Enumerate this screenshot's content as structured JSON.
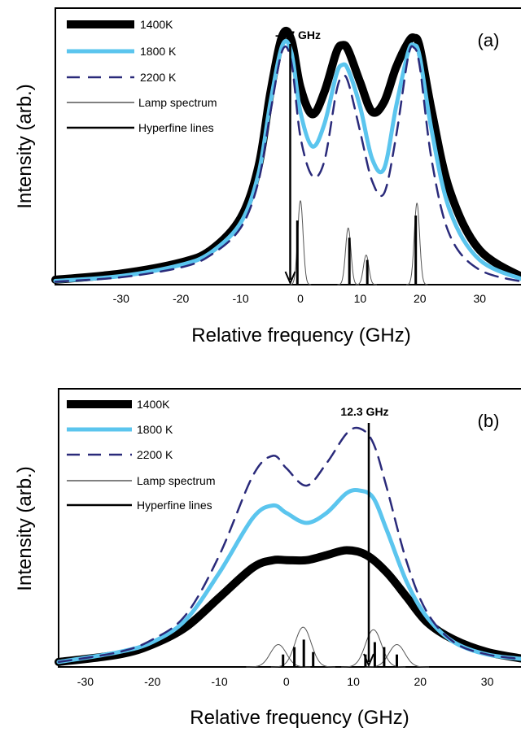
{
  "chart_data": [
    {
      "type": "line",
      "panel_label": "(a)",
      "xlabel": "Relative frequency (GHz)",
      "ylabel": "Intensity (arb.)",
      "xlim": [
        -41,
        38
      ],
      "ylim": [
        0,
        1.12
      ],
      "xticks": [
        -30,
        -20,
        -10,
        0,
        10,
        20,
        30
      ],
      "marker": {
        "x": -1.7,
        "label": "-1.7 GHz"
      },
      "legend_position": "top-left",
      "series": [
        {
          "name": "1400K",
          "style": "thick",
          "color": "#000000",
          "x": [
            -41,
            -30,
            -20,
            -15,
            -10,
            -7,
            -5,
            -3,
            -1.5,
            0,
            2,
            4,
            6,
            7,
            8,
            10,
            12,
            14,
            16,
            18,
            19,
            20,
            22,
            25,
            30,
            38
          ],
          "y": [
            0.02,
            0.045,
            0.09,
            0.14,
            0.27,
            0.48,
            0.78,
            1.01,
            0.99,
            0.8,
            0.69,
            0.78,
            0.94,
            0.97,
            0.95,
            0.82,
            0.7,
            0.74,
            0.88,
            0.98,
            1.0,
            0.96,
            0.7,
            0.38,
            0.14,
            0.02
          ]
        },
        {
          "name": "1800 K",
          "style": "medium",
          "color": "#5bc5ee",
          "x": [
            -41,
            -30,
            -20,
            -15,
            -10,
            -7,
            -5,
            -3,
            -1.5,
            0,
            2,
            4,
            6,
            7,
            8,
            10,
            12,
            14,
            16,
            18,
            19,
            20,
            22,
            25,
            30,
            38
          ],
          "y": [
            0.015,
            0.035,
            0.08,
            0.13,
            0.25,
            0.45,
            0.74,
            0.97,
            0.94,
            0.7,
            0.56,
            0.65,
            0.85,
            0.89,
            0.87,
            0.72,
            0.51,
            0.47,
            0.72,
            0.94,
            0.97,
            0.92,
            0.62,
            0.3,
            0.1,
            0.015
          ]
        },
        {
          "name": "2200 K",
          "style": "dashed",
          "color": "#2a2a7a",
          "x": [
            -41,
            -30,
            -20,
            -15,
            -10,
            -7,
            -5,
            -3,
            -1.5,
            0,
            2,
            4,
            6,
            7,
            8,
            10,
            12,
            14,
            16,
            18,
            19,
            20,
            22,
            25,
            30,
            38
          ],
          "y": [
            0.012,
            0.03,
            0.07,
            0.12,
            0.23,
            0.42,
            0.7,
            0.95,
            0.9,
            0.6,
            0.44,
            0.5,
            0.78,
            0.84,
            0.82,
            0.62,
            0.42,
            0.37,
            0.6,
            0.92,
            0.96,
            0.88,
            0.5,
            0.2,
            0.06,
            0.008
          ]
        }
      ],
      "lamp_spectrum": {
        "name": "Lamp spectrum",
        "peaks": [
          {
            "x": 0,
            "h": 0.34
          },
          {
            "x": 8,
            "h": 0.23
          },
          {
            "x": 11,
            "h": 0.12
          },
          {
            "x": 19.5,
            "h": 0.33
          }
        ],
        "width": 0.45
      },
      "hyperfine_lines": {
        "name": "Hyperfine lines",
        "lines": [
          {
            "x": -0.5,
            "h": 0.26
          },
          {
            "x": 8.2,
            "h": 0.19
          },
          {
            "x": 11.2,
            "h": 0.1
          },
          {
            "x": 19.3,
            "h": 0.28
          }
        ]
      }
    },
    {
      "type": "line",
      "panel_label": "(b)",
      "xlabel": "Relative frequency (GHz)",
      "ylabel": "Intensity (arb.)",
      "xlim": [
        -34,
        36
      ],
      "ylim": [
        0,
        1.12
      ],
      "xticks": [
        -30,
        -20,
        -10,
        0,
        10,
        20,
        30
      ],
      "marker": {
        "x": 12.3,
        "label": "12.3 GHz"
      },
      "legend_position": "top-left",
      "series": [
        {
          "name": "1400K",
          "style": "thick",
          "color": "#000000",
          "x": [
            -34,
            -25,
            -20,
            -15,
            -10,
            -5,
            -2,
            0,
            3,
            6,
            9,
            12,
            15,
            18,
            21,
            25,
            30,
            36
          ],
          "y": [
            0.02,
            0.05,
            0.09,
            0.16,
            0.28,
            0.4,
            0.43,
            0.43,
            0.43,
            0.45,
            0.47,
            0.45,
            0.38,
            0.28,
            0.18,
            0.11,
            0.06,
            0.03
          ]
        },
        {
          "name": "1800 K",
          "style": "medium",
          "color": "#5bc5ee",
          "x": [
            -34,
            -25,
            -20,
            -15,
            -10,
            -5,
            -2,
            0,
            3,
            6,
            9,
            11,
            13,
            15,
            18,
            21,
            25,
            30,
            36
          ],
          "y": [
            0.02,
            0.06,
            0.1,
            0.19,
            0.38,
            0.6,
            0.65,
            0.62,
            0.58,
            0.62,
            0.7,
            0.71,
            0.68,
            0.55,
            0.34,
            0.2,
            0.1,
            0.05,
            0.03
          ]
        },
        {
          "name": "2200 K",
          "style": "dashed",
          "color": "#2a2a7a",
          "x": [
            -34,
            -25,
            -20,
            -15,
            -10,
            -5,
            -2,
            0,
            3,
            6,
            9,
            11,
            13,
            15,
            18,
            21,
            25,
            30,
            36
          ],
          "y": [
            0.02,
            0.06,
            0.11,
            0.21,
            0.45,
            0.77,
            0.85,
            0.8,
            0.73,
            0.82,
            0.94,
            0.96,
            0.9,
            0.72,
            0.42,
            0.22,
            0.1,
            0.05,
            0.03
          ]
        }
      ],
      "lamp_spectrum": {
        "name": "Lamp spectrum",
        "peaks": [
          {
            "x": -1.2,
            "h": 0.09
          },
          {
            "x": 2.5,
            "h": 0.16
          },
          {
            "x": 13,
            "h": 0.15
          },
          {
            "x": 16.5,
            "h": 0.09
          }
        ],
        "width": 1.2
      },
      "hyperfine_lines": {
        "name": "Hyperfine lines",
        "lines": [
          {
            "x": -0.5,
            "h": 0.05
          },
          {
            "x": 1.2,
            "h": 0.08
          },
          {
            "x": 2.6,
            "h": 0.11
          },
          {
            "x": 4,
            "h": 0.06
          },
          {
            "x": 11.8,
            "h": 0.05
          },
          {
            "x": 13.2,
            "h": 0.1
          },
          {
            "x": 14.6,
            "h": 0.08
          },
          {
            "x": 16.5,
            "h": 0.05
          }
        ]
      }
    }
  ]
}
